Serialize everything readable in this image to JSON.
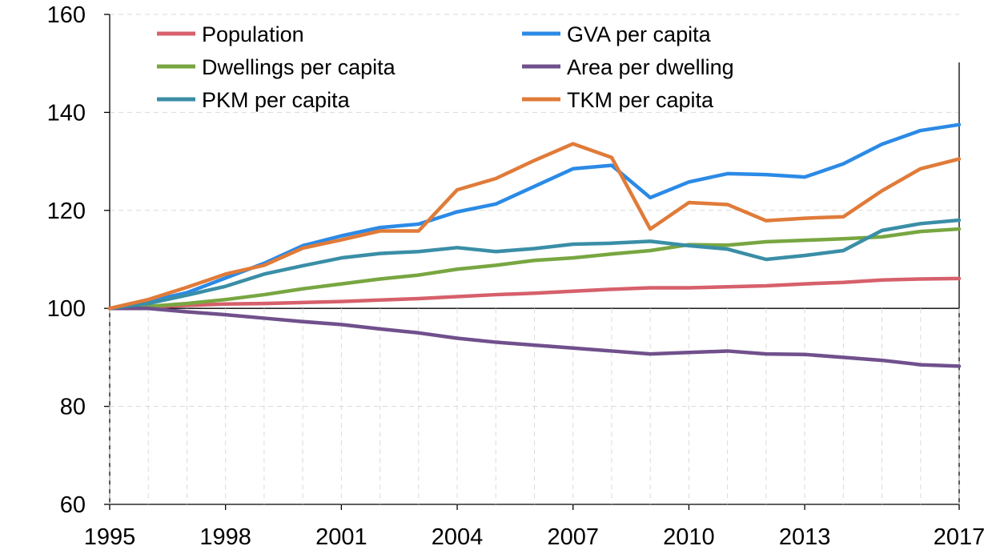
{
  "chart_data": {
    "type": "line",
    "title": "",
    "xlabel": "",
    "ylabel": "",
    "xlim": [
      1995,
      2017
    ],
    "ylim": [
      60,
      160
    ],
    "x_ticks": [
      1995,
      1998,
      2001,
      2004,
      2007,
      2010,
      2013,
      2017
    ],
    "x_tick_labels": [
      "1995",
      "1998",
      "2001",
      "2004",
      "2007",
      "2010",
      "2013",
      "2017"
    ],
    "y_ticks": [
      60,
      80,
      100,
      120,
      140,
      160
    ],
    "y_tick_labels": [
      "60",
      "80",
      "100",
      "120",
      "140",
      "160"
    ],
    "grid": "horizontal dashed",
    "legend": "top, two columns",
    "x": [
      1995,
      1996,
      1997,
      1998,
      1999,
      2000,
      2001,
      2002,
      2003,
      2004,
      2005,
      2006,
      2007,
      2008,
      2009,
      2010,
      2011,
      2012,
      2013,
      2014,
      2015,
      2016,
      2017
    ],
    "series": [
      {
        "name": "Population",
        "color": "#d6606b",
        "values": [
          100,
          100.3,
          100.6,
          100.9,
          101.0,
          101.2,
          101.4,
          101.7,
          102.0,
          102.4,
          102.8,
          103.1,
          103.5,
          103.9,
          104.2,
          104.2,
          104.4,
          104.6,
          105.0,
          105.3,
          105.8,
          106.0,
          106.1
        ]
      },
      {
        "name": "GVA per capita",
        "color": "#2b8ae6",
        "values": [
          100,
          101.4,
          103.2,
          106.2,
          109.2,
          112.8,
          114.8,
          116.5,
          117.2,
          119.7,
          121.3,
          124.9,
          128.5,
          129.2,
          122.6,
          125.8,
          127.5,
          127.3,
          126.8,
          129.5,
          133.5,
          136.3,
          137.5
        ]
      },
      {
        "name": "Dwellings per capita",
        "color": "#78a641",
        "values": [
          100,
          100.4,
          101.0,
          101.8,
          102.8,
          104.0,
          105.0,
          106.0,
          106.8,
          108.0,
          108.8,
          109.8,
          110.3,
          111.1,
          111.8,
          113.0,
          112.9,
          113.6,
          113.9,
          114.2,
          114.6,
          115.7,
          116.2
        ]
      },
      {
        "name": "Area per dwelling",
        "color": "#70508c",
        "values": [
          100,
          100.0,
          99.3,
          98.7,
          98.0,
          97.3,
          96.7,
          95.8,
          95.0,
          93.9,
          93.1,
          92.5,
          91.9,
          91.3,
          90.7,
          91.0,
          91.3,
          90.7,
          90.6,
          90.0,
          89.4,
          88.5,
          88.2
        ]
      },
      {
        "name": "PKM per capita",
        "color": "#3a8ea6",
        "values": [
          100,
          101.0,
          102.7,
          104.5,
          107.0,
          108.7,
          110.3,
          111.2,
          111.6,
          112.4,
          111.6,
          112.2,
          113.1,
          113.3,
          113.7,
          112.8,
          112.1,
          110.0,
          110.8,
          111.8,
          115.9,
          117.3,
          118.0
        ]
      },
      {
        "name": "TKM per capita",
        "color": "#e07b39",
        "values": [
          100,
          101.8,
          104.3,
          107.0,
          108.8,
          112.3,
          114.0,
          115.8,
          115.8,
          124.2,
          126.5,
          130.2,
          133.6,
          130.8,
          116.2,
          121.6,
          121.2,
          117.9,
          118.4,
          118.7,
          124.0,
          128.5,
          130.5
        ]
      }
    ]
  }
}
